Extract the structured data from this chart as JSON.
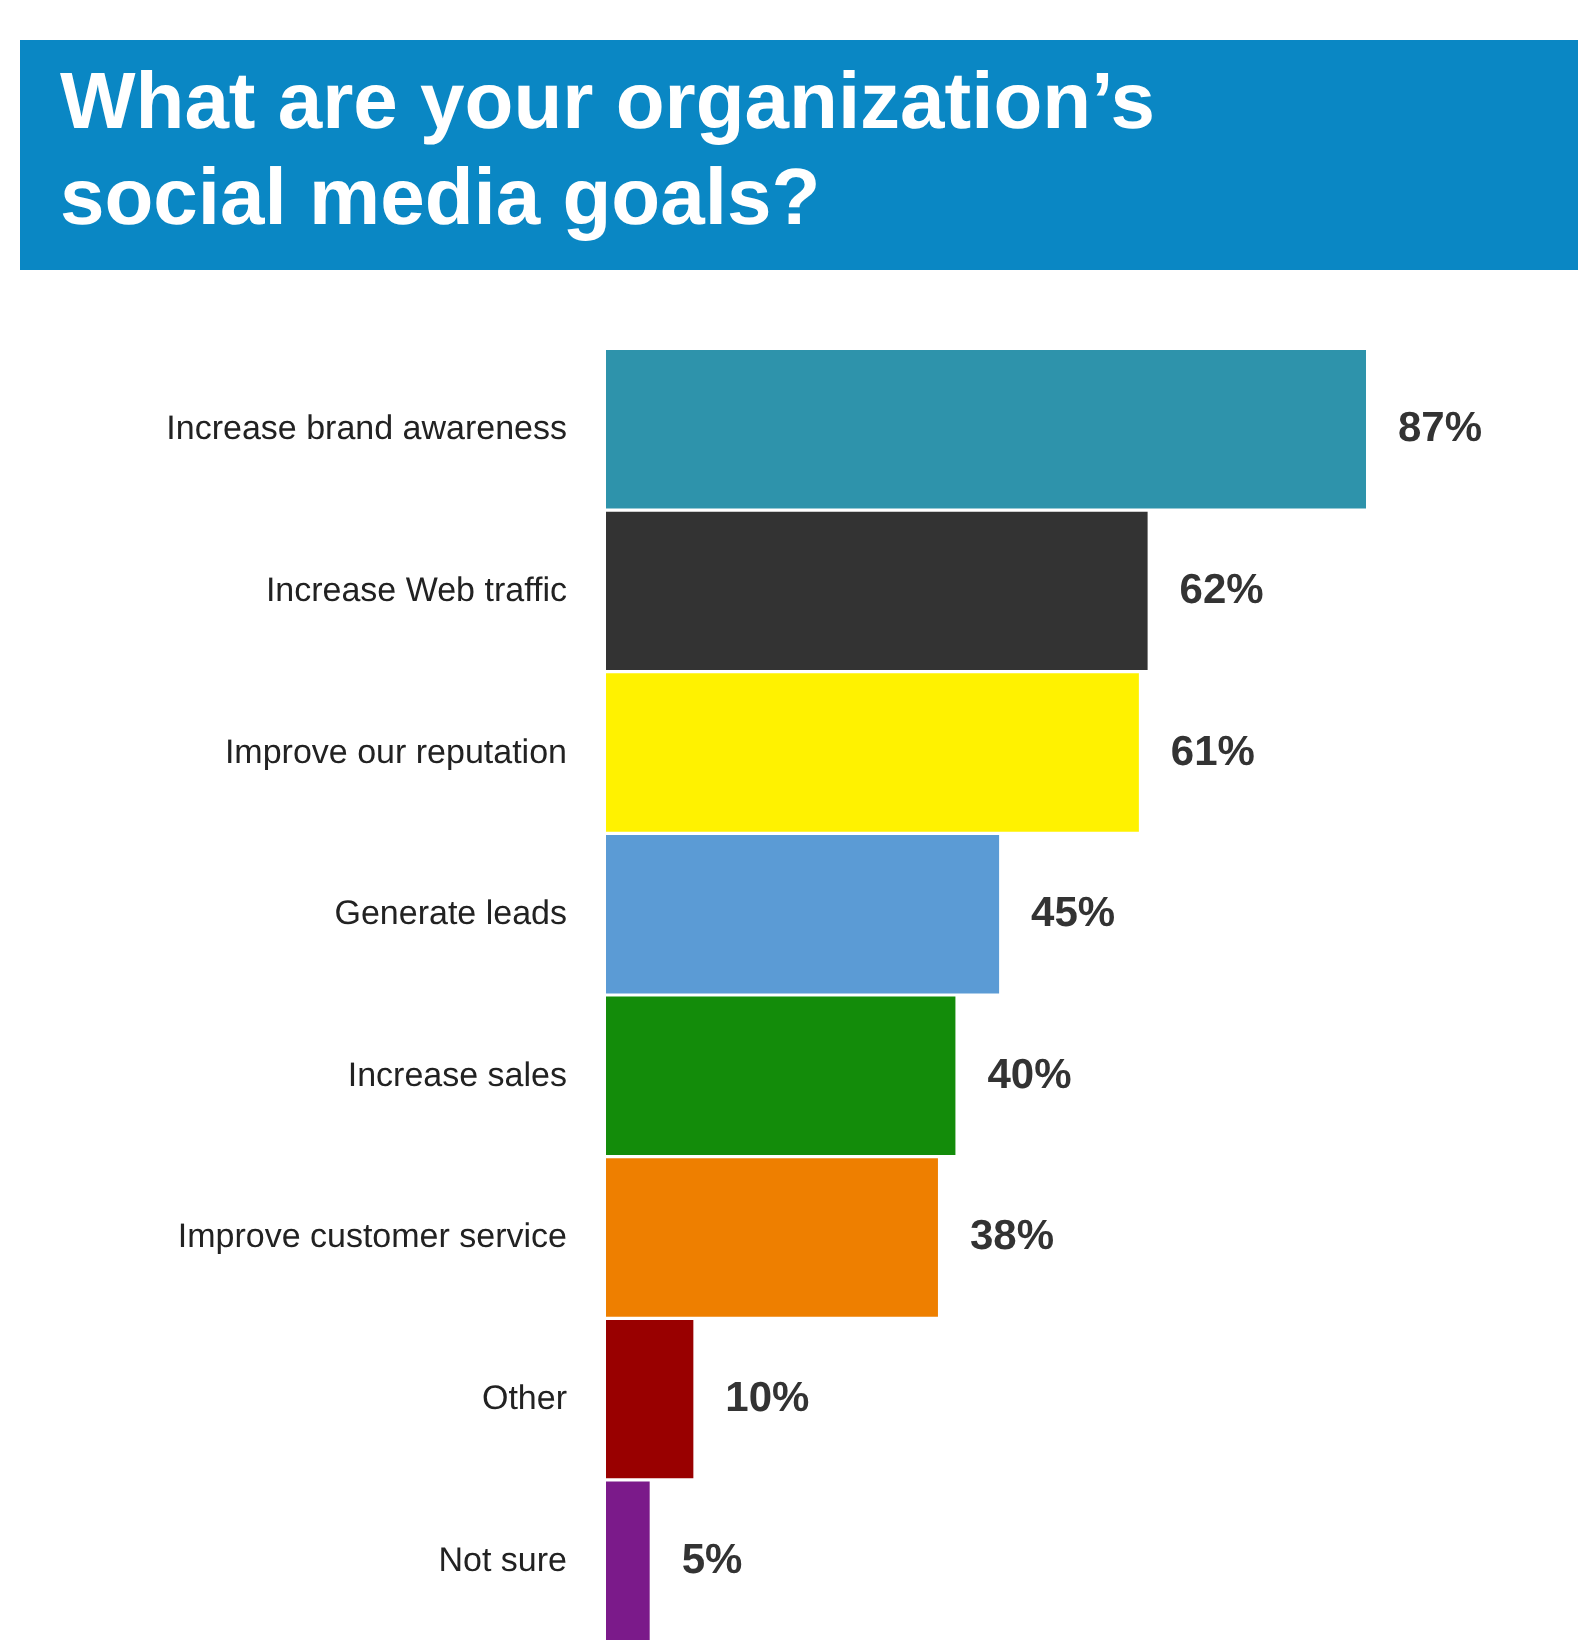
{
  "chart_data": {
    "type": "bar",
    "orientation": "horizontal",
    "title": "What are your organization’s\nsocial media goals?",
    "categories": [
      "Increase brand awareness",
      "Increase Web traffic",
      "Improve our reputation",
      "Generate leads",
      "Increase sales",
      "Improve customer service",
      "Other",
      "Not sure"
    ],
    "values": [
      87,
      62,
      61,
      45,
      40,
      38,
      10,
      5
    ],
    "colors": [
      "#2e93ab",
      "#333333",
      "#fff200",
      "#5b9bd5",
      "#138c0a",
      "#ee7f00",
      "#990000",
      "#7b1a8a"
    ],
    "value_labels": [
      "87%",
      "62%",
      "61%",
      "45%",
      "40%",
      "38%",
      "10%",
      "5%"
    ],
    "tick_labels": "y"
  }
}
